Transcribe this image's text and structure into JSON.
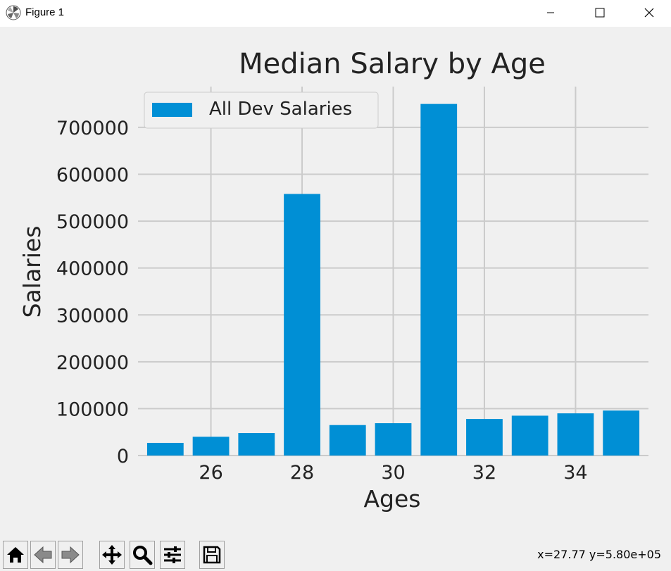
{
  "window": {
    "title": "Figure 1",
    "controls": [
      "minimize",
      "maximize",
      "close"
    ]
  },
  "colors": {
    "bar": "#008fd5",
    "grid": "#cbcbcb",
    "background": "#f0f0f0"
  },
  "chart_data": {
    "type": "bar",
    "title": "Median Salary by Age",
    "xlabel": "Ages",
    "ylabel": "Salaries",
    "x": [
      25,
      26,
      27,
      28,
      29,
      30,
      31,
      32,
      33,
      34,
      35
    ],
    "series": [
      {
        "name": "All Dev Salaries",
        "values": [
          27000,
          40000,
          48000,
          558000,
          65000,
          69000,
          750000,
          78000,
          85000,
          90000,
          96000
        ]
      }
    ],
    "xticks": [
      26,
      28,
      30,
      32,
      34
    ],
    "yticks": [
      0,
      100000,
      200000,
      300000,
      400000,
      500000,
      600000,
      700000
    ],
    "xlim": [
      24.4,
      35.6
    ],
    "ylim": [
      0,
      787000
    ],
    "grid": true,
    "legend_position": "top-left"
  },
  "toolbar": {
    "buttons": [
      "home-icon",
      "back-icon",
      "forward-icon",
      "pan-icon",
      "zoom-icon",
      "configure-icon",
      "save-icon"
    ],
    "coordinates": "x=27.77 y=5.80e+05"
  }
}
